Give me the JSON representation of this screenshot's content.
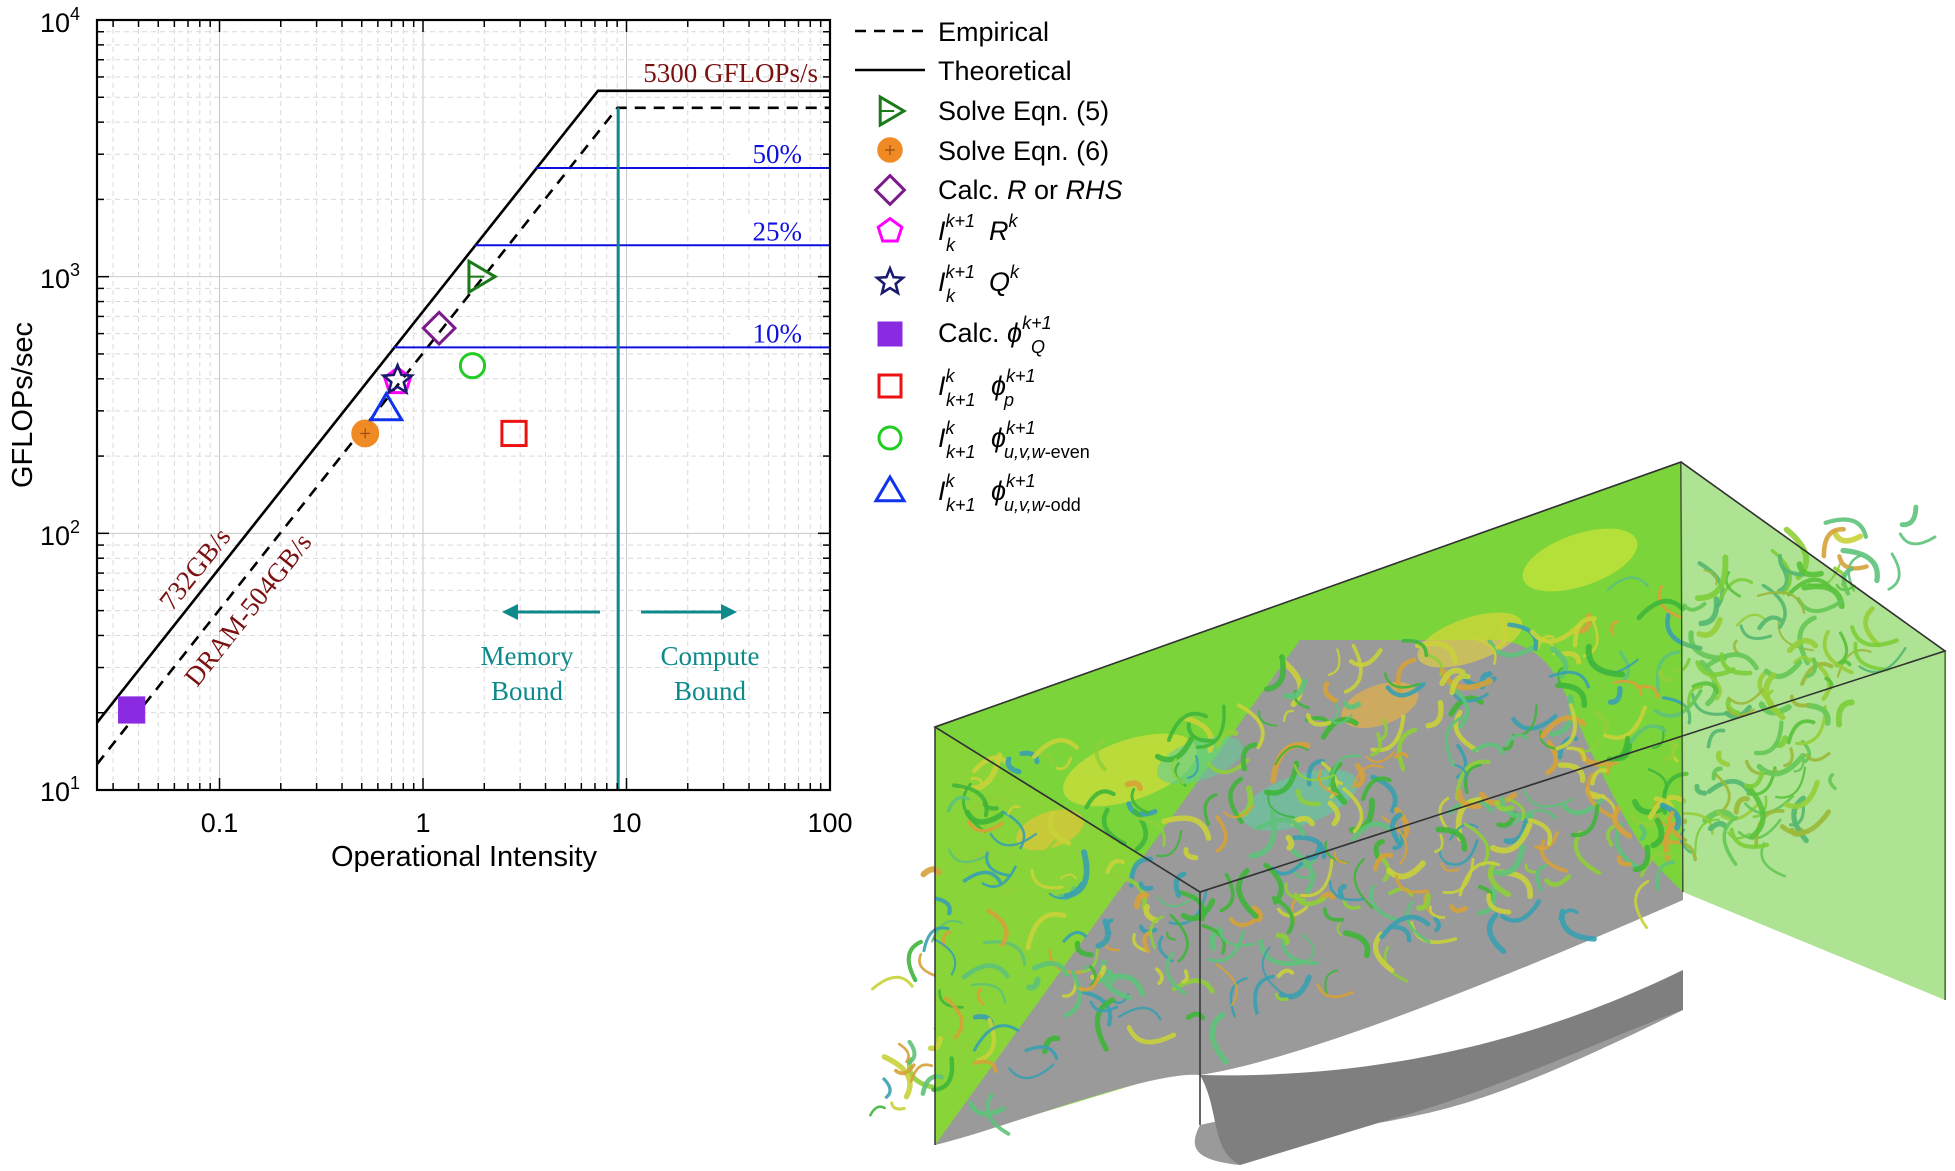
{
  "chart_data": {
    "type": "scatter",
    "xlabel": "Operational Intensity",
    "ylabel": "GFLOPs/sec",
    "x_scale": "log",
    "y_scale": "log",
    "xlim": [
      0.025,
      100
    ],
    "ylim": [
      10,
      10000
    ],
    "x_ticks": [
      {
        "value": 0.1,
        "label": "0.1"
      },
      {
        "value": 1,
        "label": "1"
      },
      {
        "value": 10,
        "label": "10"
      },
      {
        "value": 100,
        "label": "100"
      }
    ],
    "y_ticks": [
      {
        "value": 10,
        "base": "10",
        "exp": "1"
      },
      {
        "value": 100,
        "base": "10",
        "exp": "2"
      },
      {
        "value": 1000,
        "base": "10",
        "exp": "3"
      },
      {
        "value": 10000,
        "base": "10",
        "exp": "4"
      }
    ],
    "grid": true,
    "legend_position": "right, outside plot",
    "rooflines": [
      {
        "name": "Theoretical",
        "style": "solid",
        "bandwidth_gb_s": 732,
        "peak_gflops": 5300
      },
      {
        "name": "Empirical",
        "style": "dashed",
        "bandwidth_gb_s": 504,
        "peak_gflops": 4550
      }
    ],
    "ceilings": [
      {
        "label": "50%",
        "y": 2650,
        "x_from": 3.6,
        "x_to": 100
      },
      {
        "label": "25%",
        "y": 1325,
        "x_from": 1.8,
        "x_to": 100
      },
      {
        "label": "10%",
        "y": 530,
        "x_from": 0.72,
        "x_to": 100
      }
    ],
    "ridge_line": {
      "x": 9.1,
      "color": "#0e8a8a"
    },
    "annotations": {
      "peak": "5300 GFLOPs/s",
      "bw_theoretical": "732GB/s",
      "bw_empirical": "DRAM-504GB/s",
      "memory_bound": [
        "Memory",
        "Bound"
      ],
      "compute_bound": [
        "Compute",
        "Bound"
      ]
    },
    "series": [
      {
        "key": "solve5",
        "marker": "triangle-right",
        "color": "#1a7a1a",
        "fill": "none",
        "x": 1.9,
        "y": 1000
      },
      {
        "key": "solve6",
        "marker": "circle-plus",
        "color": "#f08a24",
        "fill": "#f08a24",
        "x": 0.52,
        "y": 245
      },
      {
        "key": "calcR",
        "marker": "diamond",
        "color": "#7b1a8a",
        "fill": "none",
        "x": 1.2,
        "y": 630
      },
      {
        "key": "restrictR",
        "marker": "pentagon",
        "color": "#ff00ff",
        "fill": "none",
        "x": 0.75,
        "y": 390
      },
      {
        "key": "restrictQ",
        "marker": "star",
        "color": "#1a1a6e",
        "fill": "none",
        "x": 0.75,
        "y": 395
      },
      {
        "key": "calcPhi",
        "marker": "square",
        "color": "#8a2be2",
        "fill": "#8a2be2",
        "x": 0.037,
        "y": 20.5
      },
      {
        "key": "interpP",
        "marker": "square",
        "color": "#ee1111",
        "fill": "none",
        "x": 2.8,
        "y": 245
      },
      {
        "key": "interpEven",
        "marker": "circle",
        "color": "#22cc22",
        "fill": "none",
        "x": 1.75,
        "y": 450
      },
      {
        "key": "interpOdd",
        "marker": "triangle-up",
        "color": "#1133ee",
        "fill": "none",
        "x": 0.66,
        "y": 305
      }
    ]
  },
  "legend": {
    "empirical": "Empirical",
    "theoretical": "Theoretical",
    "solve5": "Solve Eqn. (5)",
    "solve6": "Solve Eqn. (6)",
    "calcR": {
      "pre": "Calc. ",
      "r": "R",
      "mid": " or ",
      "rhs": "RHS"
    },
    "restrictR": {
      "i": "I",
      "sup": "k+1",
      "sub": "k",
      "var": "R",
      "var_sup": "k"
    },
    "restrictQ": {
      "i": "I",
      "sup": "k+1",
      "sub": "k",
      "var": "Q",
      "var_sup": "k"
    },
    "calcPhi": {
      "pre": "Calc. ",
      "phi": "ϕ",
      "sup": "k+1",
      "sub": "Q"
    },
    "interpP": {
      "i": "I",
      "sup": "k",
      "sub": "k+1",
      "phi": "ϕ",
      "phi_sup": "k+1",
      "phi_sub": "p"
    },
    "interpEven": {
      "i": "I",
      "sup": "k",
      "sub": "k+1",
      "phi": "ϕ",
      "phi_sup": "k+1",
      "phi_sub_it": "u,v,w",
      "phi_sub_rest": "-even"
    },
    "interpOdd": {
      "i": "I",
      "sup": "k",
      "sub": "k+1",
      "phi": "ϕ",
      "phi_sup": "k+1",
      "phi_sub_it": "u,v,w",
      "phi_sub_rest": "-odd"
    }
  },
  "visualization": {
    "floor_color": "#9a9a9a",
    "wall_color": "#7ad43a",
    "vortex_colors": [
      "#3fb63a",
      "#8fcf3a",
      "#d6a23a",
      "#3aa0b0",
      "#c9d23a",
      "#5ec27a"
    ]
  }
}
